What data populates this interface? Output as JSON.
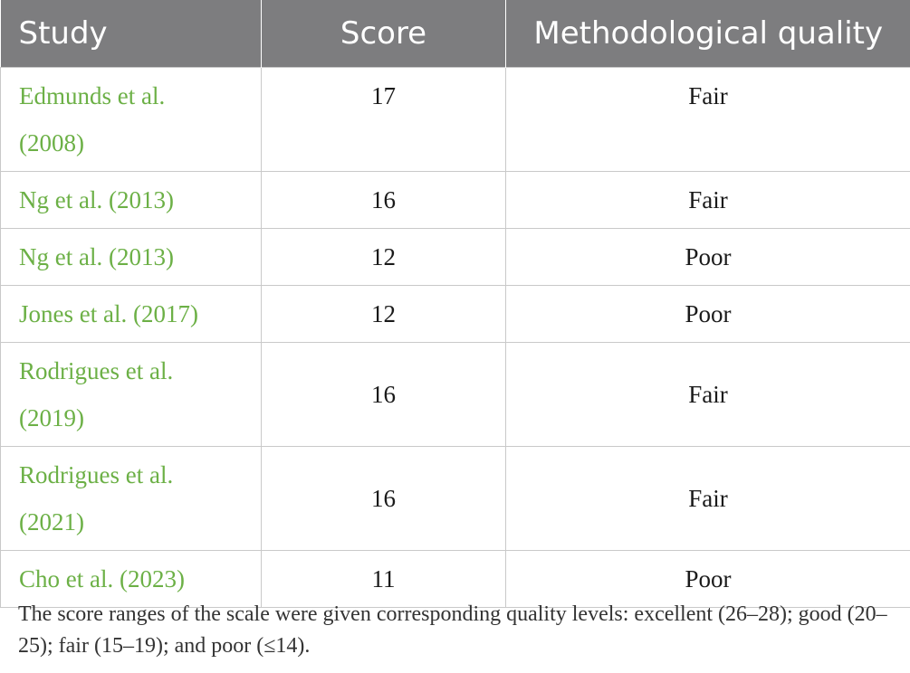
{
  "table": {
    "headers": {
      "study": "Study",
      "score": "Score",
      "quality": "Methodological quality"
    },
    "rows": [
      {
        "study_line1": "Edmunds et al.",
        "study_line2": "(2008)",
        "score": "17",
        "quality": "Fair"
      },
      {
        "study_line1": "Ng et al. (2013)",
        "study_line2": "",
        "score": "16",
        "quality": "Fair"
      },
      {
        "study_line1": "Ng et al. (2013)",
        "study_line2": "",
        "score": "12",
        "quality": "Poor"
      },
      {
        "study_line1": "Jones et al. (2017)",
        "study_line2": "",
        "score": "12",
        "quality": "Poor"
      },
      {
        "study_line1": "Rodrigues et al.",
        "study_line2": "(2019)",
        "score": "16",
        "quality": "Fair"
      },
      {
        "study_line1": "Rodrigues et al.",
        "study_line2": "(2021)",
        "score": "16",
        "quality": "Fair"
      },
      {
        "study_line1": "Cho et al. (2023)",
        "study_line2": "",
        "score": "11",
        "quality": "Poor"
      }
    ]
  },
  "footnote": "The score ranges of the scale were given corresponding quality levels: excellent (26–28); good (20–25); fair (15–19); and poor (≤14).",
  "colors": {
    "header_bg": "#7d7d7f",
    "study_link": "#6cb046",
    "grid": "#c9c9c9"
  }
}
